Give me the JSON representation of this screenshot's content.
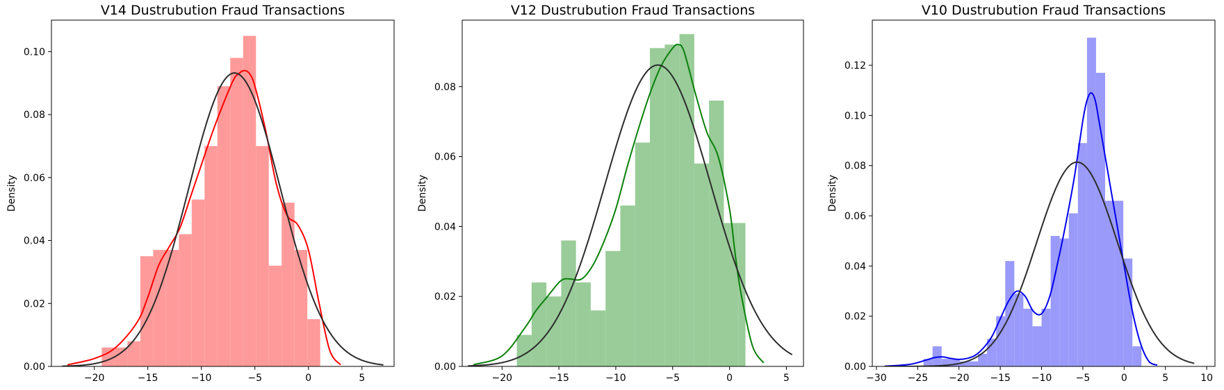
{
  "chart_data": [
    {
      "type": "histogram",
      "title": "V14 Dustrubution Fraud Transactions",
      "xlabel": "",
      "ylabel": "Density",
      "xlim": [
        -24,
        8
      ],
      "ylim": [
        0,
        0.11
      ],
      "xticks": [
        -20,
        -15,
        -10,
        -5,
        0,
        5
      ],
      "yticks": [
        0.0,
        0.02,
        0.04,
        0.06,
        0.08,
        0.1
      ],
      "xtick_labels": [
        "−20",
        "−15",
        "−10",
        "−5",
        "0",
        "5"
      ],
      "ytick_labels": [
        "0.00",
        "0.02",
        "0.04",
        "0.06",
        "0.08",
        "0.10"
      ],
      "hist_color": "#ff9a9a",
      "kde_color": "#ff0000",
      "fit_color": "#2b2b2b",
      "bin_edges": [
        -19.3,
        -18.1,
        -16.9,
        -15.7,
        -14.5,
        -13.3,
        -12.1,
        -10.9,
        -9.7,
        -8.5,
        -7.3,
        -6.1,
        -4.9,
        -3.7,
        -2.5,
        -1.3,
        -0.1,
        1.1,
        2.3
      ],
      "bin_heights": [
        0.006,
        0.006,
        0.008,
        0.035,
        0.037,
        0.037,
        0.042,
        0.053,
        0.07,
        0.089,
        0.098,
        0.105,
        0.07,
        0.032,
        0.052,
        0.037,
        0.015,
        0.0
      ],
      "kde": {
        "x": [
          -22.5,
          -20,
          -18,
          -16,
          -15,
          -14,
          -13,
          -12,
          -11,
          -10,
          -9,
          -8,
          -7,
          -6.5,
          -6,
          -5.5,
          -5,
          -4,
          -3,
          -2,
          -1,
          0,
          1,
          2,
          3
        ],
        "y": [
          0.0005,
          0.0025,
          0.006,
          0.014,
          0.022,
          0.032,
          0.038,
          0.044,
          0.054,
          0.064,
          0.074,
          0.083,
          0.091,
          0.093,
          0.094,
          0.093,
          0.089,
          0.075,
          0.058,
          0.048,
          0.045,
          0.037,
          0.02,
          0.005,
          0.0005
        ]
      },
      "fit": {
        "mean": -6.9,
        "std": 4.28,
        "x_range": [
          -23,
          7
        ]
      }
    },
    {
      "type": "histogram",
      "title": "V12 Dustrubution Fraud Transactions",
      "xlabel": "",
      "ylabel": "Density",
      "xlim": [
        -23.5,
        6.5
      ],
      "ylim": [
        0,
        0.099
      ],
      "xticks": [
        -20,
        -15,
        -10,
        -5,
        0,
        5
      ],
      "yticks": [
        0.0,
        0.02,
        0.04,
        0.06,
        0.08
      ],
      "xtick_labels": [
        "−20",
        "−15",
        "−10",
        "−5",
        "0",
        "5"
      ],
      "ytick_labels": [
        "0.00",
        "0.02",
        "0.04",
        "0.06",
        "0.08"
      ],
      "hist_color": "#99cc99",
      "kde_color": "#0a800a",
      "fit_color": "#2b2b2b",
      "bin_edges": [
        -18.7,
        -17.4,
        -16.1,
        -14.8,
        -13.5,
        -12.2,
        -10.9,
        -9.6,
        -8.3,
        -7.0,
        -5.7,
        -4.4,
        -3.1,
        -1.8,
        -0.5,
        0.8,
        1.4
      ],
      "bin_heights": [
        0.009,
        0.024,
        0.02,
        0.036,
        0.024,
        0.016,
        0.033,
        0.046,
        0.064,
        0.091,
        0.092,
        0.095,
        0.058,
        0.076,
        0.041,
        0.041
      ],
      "kde": {
        "x": [
          -22.5,
          -20,
          -18,
          -17,
          -16,
          -15,
          -14.5,
          -14,
          -13,
          -12,
          -11,
          -10,
          -9,
          -8,
          -7,
          -6,
          -5,
          -4.5,
          -4,
          -3,
          -2,
          -1,
          0,
          0.5,
          1,
          2,
          3
        ],
        "y": [
          0.0005,
          0.003,
          0.011,
          0.016,
          0.02,
          0.024,
          0.025,
          0.025,
          0.025,
          0.029,
          0.036,
          0.045,
          0.057,
          0.068,
          0.078,
          0.086,
          0.091,
          0.092,
          0.09,
          0.078,
          0.067,
          0.06,
          0.045,
          0.032,
          0.021,
          0.006,
          0.001
        ]
      },
      "fit": {
        "mean": -6.3,
        "std": 4.63,
        "x_range": [
          -23,
          5.5
        ]
      }
    },
    {
      "type": "histogram",
      "title": "V10 Dustrubution Fraud Transactions",
      "xlabel": "",
      "ylabel": "Density",
      "xlim": [
        -30.5,
        11
      ],
      "ylim": [
        0,
        0.138
      ],
      "xticks": [
        -30,
        -25,
        -20,
        -15,
        -10,
        -5,
        0,
        5,
        10
      ],
      "yticks": [
        0.0,
        0.02,
        0.04,
        0.06,
        0.08,
        0.1,
        0.12
      ],
      "xtick_labels": [
        "−30",
        "−25",
        "−20",
        "−15",
        "−10",
        "−5",
        "0",
        "5",
        "10"
      ],
      "ytick_labels": [
        "0.00",
        "0.02",
        "0.04",
        "0.06",
        "0.08",
        "0.10",
        "0.12"
      ],
      "hist_color": "#9a9afa",
      "kde_color": "#0000ee",
      "fit_color": "#2b2b2b",
      "bin_edges": [
        -24.3,
        -23.2,
        -22.1,
        -21.0,
        -19.9,
        -18.8,
        -17.7,
        -16.6,
        -15.5,
        -14.4,
        -13.3,
        -12.2,
        -11.1,
        -10.0,
        -8.9,
        -7.8,
        -6.7,
        -5.6,
        -4.5,
        -3.4,
        -2.3,
        -1.2,
        -0.1,
        1.0,
        2.1
      ],
      "bin_heights": [
        0.003,
        0.008,
        0.003,
        0.003,
        0.002,
        0.002,
        0.005,
        0.011,
        0.02,
        0.042,
        0.029,
        0.023,
        0.016,
        0.023,
        0.052,
        0.051,
        0.061,
        0.089,
        0.131,
        0.117,
        0.066,
        0.066,
        0.043,
        0.008
      ],
      "kde": {
        "x": [
          -29,
          -26,
          -24,
          -23,
          -22,
          -21,
          -20,
          -19,
          -18,
          -17,
          -16,
          -15,
          -14,
          -13,
          -12,
          -11,
          -10,
          -9,
          -8,
          -7,
          -6,
          -5,
          -4.5,
          -4,
          -3.5,
          -3,
          -2,
          -1,
          0,
          1,
          2,
          3,
          4
        ],
        "y": [
          0.0001,
          0.0008,
          0.0025,
          0.0035,
          0.0038,
          0.0032,
          0.0028,
          0.0032,
          0.0045,
          0.0075,
          0.012,
          0.019,
          0.026,
          0.03,
          0.028,
          0.022,
          0.021,
          0.028,
          0.042,
          0.058,
          0.076,
          0.098,
          0.106,
          0.109,
          0.106,
          0.097,
          0.078,
          0.059,
          0.04,
          0.022,
          0.009,
          0.002,
          0.0005
        ]
      },
      "fit": {
        "mean": -5.7,
        "std": 4.9,
        "x_range": [
          -29,
          8.5
        ]
      }
    }
  ]
}
